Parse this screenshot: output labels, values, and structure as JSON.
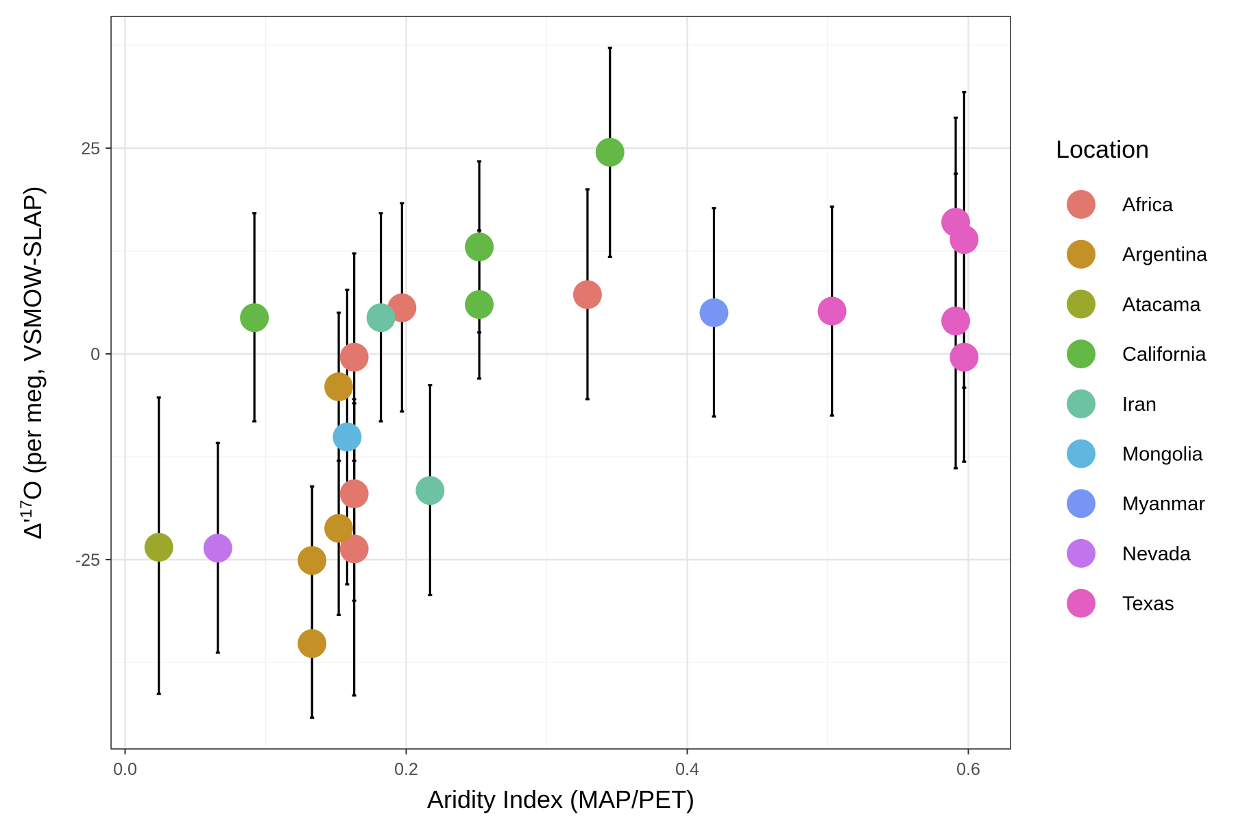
{
  "chart_data": {
    "type": "scatter",
    "title": "",
    "xlabel": "Aridity Index (MAP/PET)",
    "ylabel_parts": {
      "pre": "Δ'",
      "sup": "17",
      "post": "O (per meg, VSMOW-SLAP)"
    },
    "xlim": [
      -0.01,
      0.63
    ],
    "ylim": [
      -48,
      41
    ],
    "xticks": [
      0.0,
      0.2,
      0.4,
      0.6
    ],
    "xtick_labels": [
      "0.0",
      "0.2",
      "0.4",
      "0.6"
    ],
    "yticks": [
      -25,
      0,
      25
    ],
    "ytick_labels": [
      "-25",
      "0",
      "25"
    ],
    "grid": true,
    "legend": {
      "title": "Location",
      "position": "right"
    },
    "series": [
      {
        "name": "Africa",
        "color": "#E2776D",
        "points": [
          {
            "x": 0.197,
            "y": 5.6,
            "ylo": -7.0,
            "yhi": 18.3
          },
          {
            "x": 0.163,
            "y": -0.4,
            "ylo": -13.0,
            "yhi": 12.2
          },
          {
            "x": 0.163,
            "y": -17.0,
            "ylo": -30.0,
            "yhi": -5.5
          },
          {
            "x": 0.163,
            "y": -23.7,
            "ylo": -41.5,
            "yhi": -6.0
          },
          {
            "x": 0.329,
            "y": 7.2,
            "ylo": -5.5,
            "yhi": 20.0
          }
        ]
      },
      {
        "name": "Argentina",
        "color": "#C49126",
        "points": [
          {
            "x": 0.152,
            "y": -4.0,
            "ylo": -13.0,
            "yhi": 5.0
          },
          {
            "x": 0.152,
            "y": -21.2,
            "ylo": -31.7,
            "yhi": -13.0
          },
          {
            "x": 0.133,
            "y": -25.1,
            "ylo": -44.2,
            "yhi": -16.1
          },
          {
            "x": 0.133,
            "y": -35.2,
            "ylo": -44.2,
            "yhi": -16.1
          }
        ]
      },
      {
        "name": "Atacama",
        "color": "#9BA82B",
        "points": [
          {
            "x": 0.024,
            "y": -23.5,
            "ylo": -41.3,
            "yhi": -5.3
          }
        ]
      },
      {
        "name": "California",
        "color": "#63B846",
        "points": [
          {
            "x": 0.092,
            "y": 4.4,
            "ylo": -8.2,
            "yhi": 17.1
          },
          {
            "x": 0.252,
            "y": 13.0,
            "ylo": 2.6,
            "yhi": 23.4
          },
          {
            "x": 0.252,
            "y": 6.0,
            "ylo": -3.0,
            "yhi": 15.0
          },
          {
            "x": 0.345,
            "y": 24.5,
            "ylo": 11.8,
            "yhi": 37.2
          }
        ]
      },
      {
        "name": "Iran",
        "color": "#6CC2A1",
        "points": [
          {
            "x": 0.182,
            "y": 4.4,
            "ylo": -8.2,
            "yhi": 17.1
          },
          {
            "x": 0.217,
            "y": -16.6,
            "ylo": -29.3,
            "yhi": -3.8
          }
        ]
      },
      {
        "name": "Mongolia",
        "color": "#5FB7DF",
        "points": [
          {
            "x": 0.158,
            "y": -10.1,
            "ylo": -28.0,
            "yhi": 7.8
          }
        ]
      },
      {
        "name": "Myanmar",
        "color": "#7796F4",
        "points": [
          {
            "x": 0.419,
            "y": 5.0,
            "ylo": -7.6,
            "yhi": 17.7
          }
        ]
      },
      {
        "name": "Nevada",
        "color": "#C175EC",
        "points": [
          {
            "x": 0.066,
            "y": -23.6,
            "ylo": -36.3,
            "yhi": -10.8
          }
        ]
      },
      {
        "name": "Texas",
        "color": "#E25EC0",
        "points": [
          {
            "x": 0.503,
            "y": 5.2,
            "ylo": -7.5,
            "yhi": 17.9
          },
          {
            "x": 0.591,
            "y": 16.0,
            "ylo": 3.3,
            "yhi": 28.7
          },
          {
            "x": 0.597,
            "y": 13.9,
            "ylo": -4.1,
            "yhi": 31.8
          },
          {
            "x": 0.591,
            "y": 4.0,
            "ylo": -13.9,
            "yhi": 21.9
          },
          {
            "x": 0.597,
            "y": -0.4,
            "ylo": -13.1,
            "yhi": 12.3
          }
        ]
      }
    ]
  }
}
